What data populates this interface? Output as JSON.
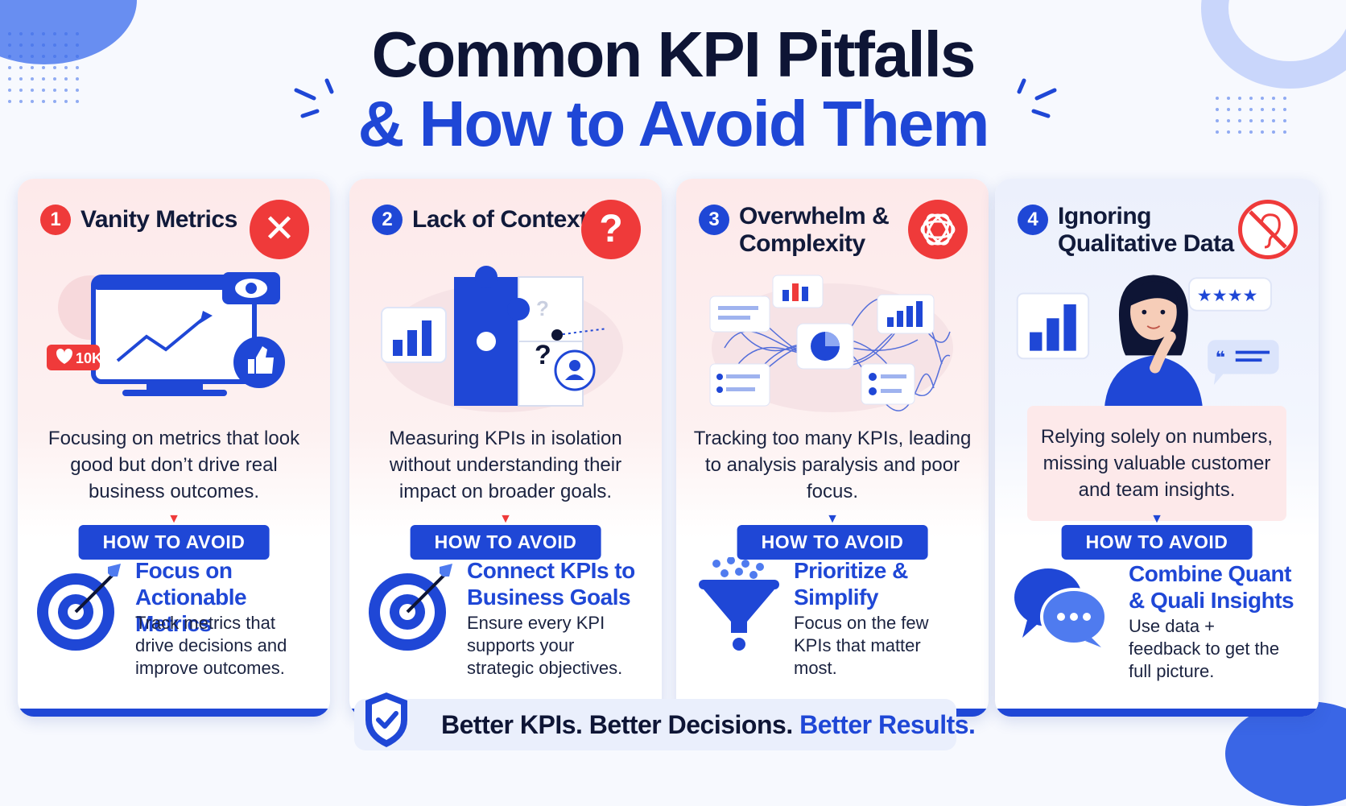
{
  "title": {
    "line1": "Common KPI Pitfalls",
    "line2": "& How to Avoid Them"
  },
  "colors": {
    "navy": "#0e1535",
    "blue": "#1f47d6",
    "red": "#ef3a3a",
    "pink_panel": "#fde9ea",
    "blue_panel": "#ecf0fc"
  },
  "cards": [
    {
      "number": "1",
      "title": "Vanity Metrics",
      "badge_icon": "x-icon",
      "badge_glyph": "✕",
      "like_count": "10K",
      "description": "Focusing on metrics that look good but don’t drive real business outcomes.",
      "howto_label": "HOW TO AVOID",
      "solution_title": "Focus on Actionable Metrics",
      "solution_desc": "Track metrics that drive decisions and improve outcomes.",
      "solution_icon": "target-icon"
    },
    {
      "number": "2",
      "title": "Lack of Context",
      "badge_icon": "question-icon",
      "badge_glyph": "?",
      "description": "Measuring KPIs in isolation without understanding their impact on broader goals.",
      "howto_label": "HOW TO AVOID",
      "solution_title": "Connect KPIs to Business Goals",
      "solution_desc": "Ensure every KPI supports your strategic objectives.",
      "solution_icon": "target-icon"
    },
    {
      "number": "3",
      "title": "Overwhelm & Complexity",
      "badge_icon": "tangle-icon",
      "description": "Tracking too many KPIs, leading to analysis paralysis and poor focus.",
      "howto_label": "HOW TO AVOID",
      "solution_title": "Prioritize & Simplify",
      "solution_desc": "Focus on the few KPIs that matter most.",
      "solution_icon": "funnel-icon"
    },
    {
      "number": "4",
      "title": "Ignoring Qualitative Data",
      "badge_icon": "no-listening-icon",
      "description": "Relying solely on numbers, missing valuable customer and team insights.",
      "howto_label": "HOW TO AVOID",
      "solution_title": "Combine Quant & Quali Insights",
      "solution_desc": "Use data + feedback to get the full picture.",
      "solution_icon": "chat-bubbles-icon"
    }
  ],
  "footer": {
    "part1": "Better KPIs. Better Decisions.",
    "part2": "Better Results."
  }
}
